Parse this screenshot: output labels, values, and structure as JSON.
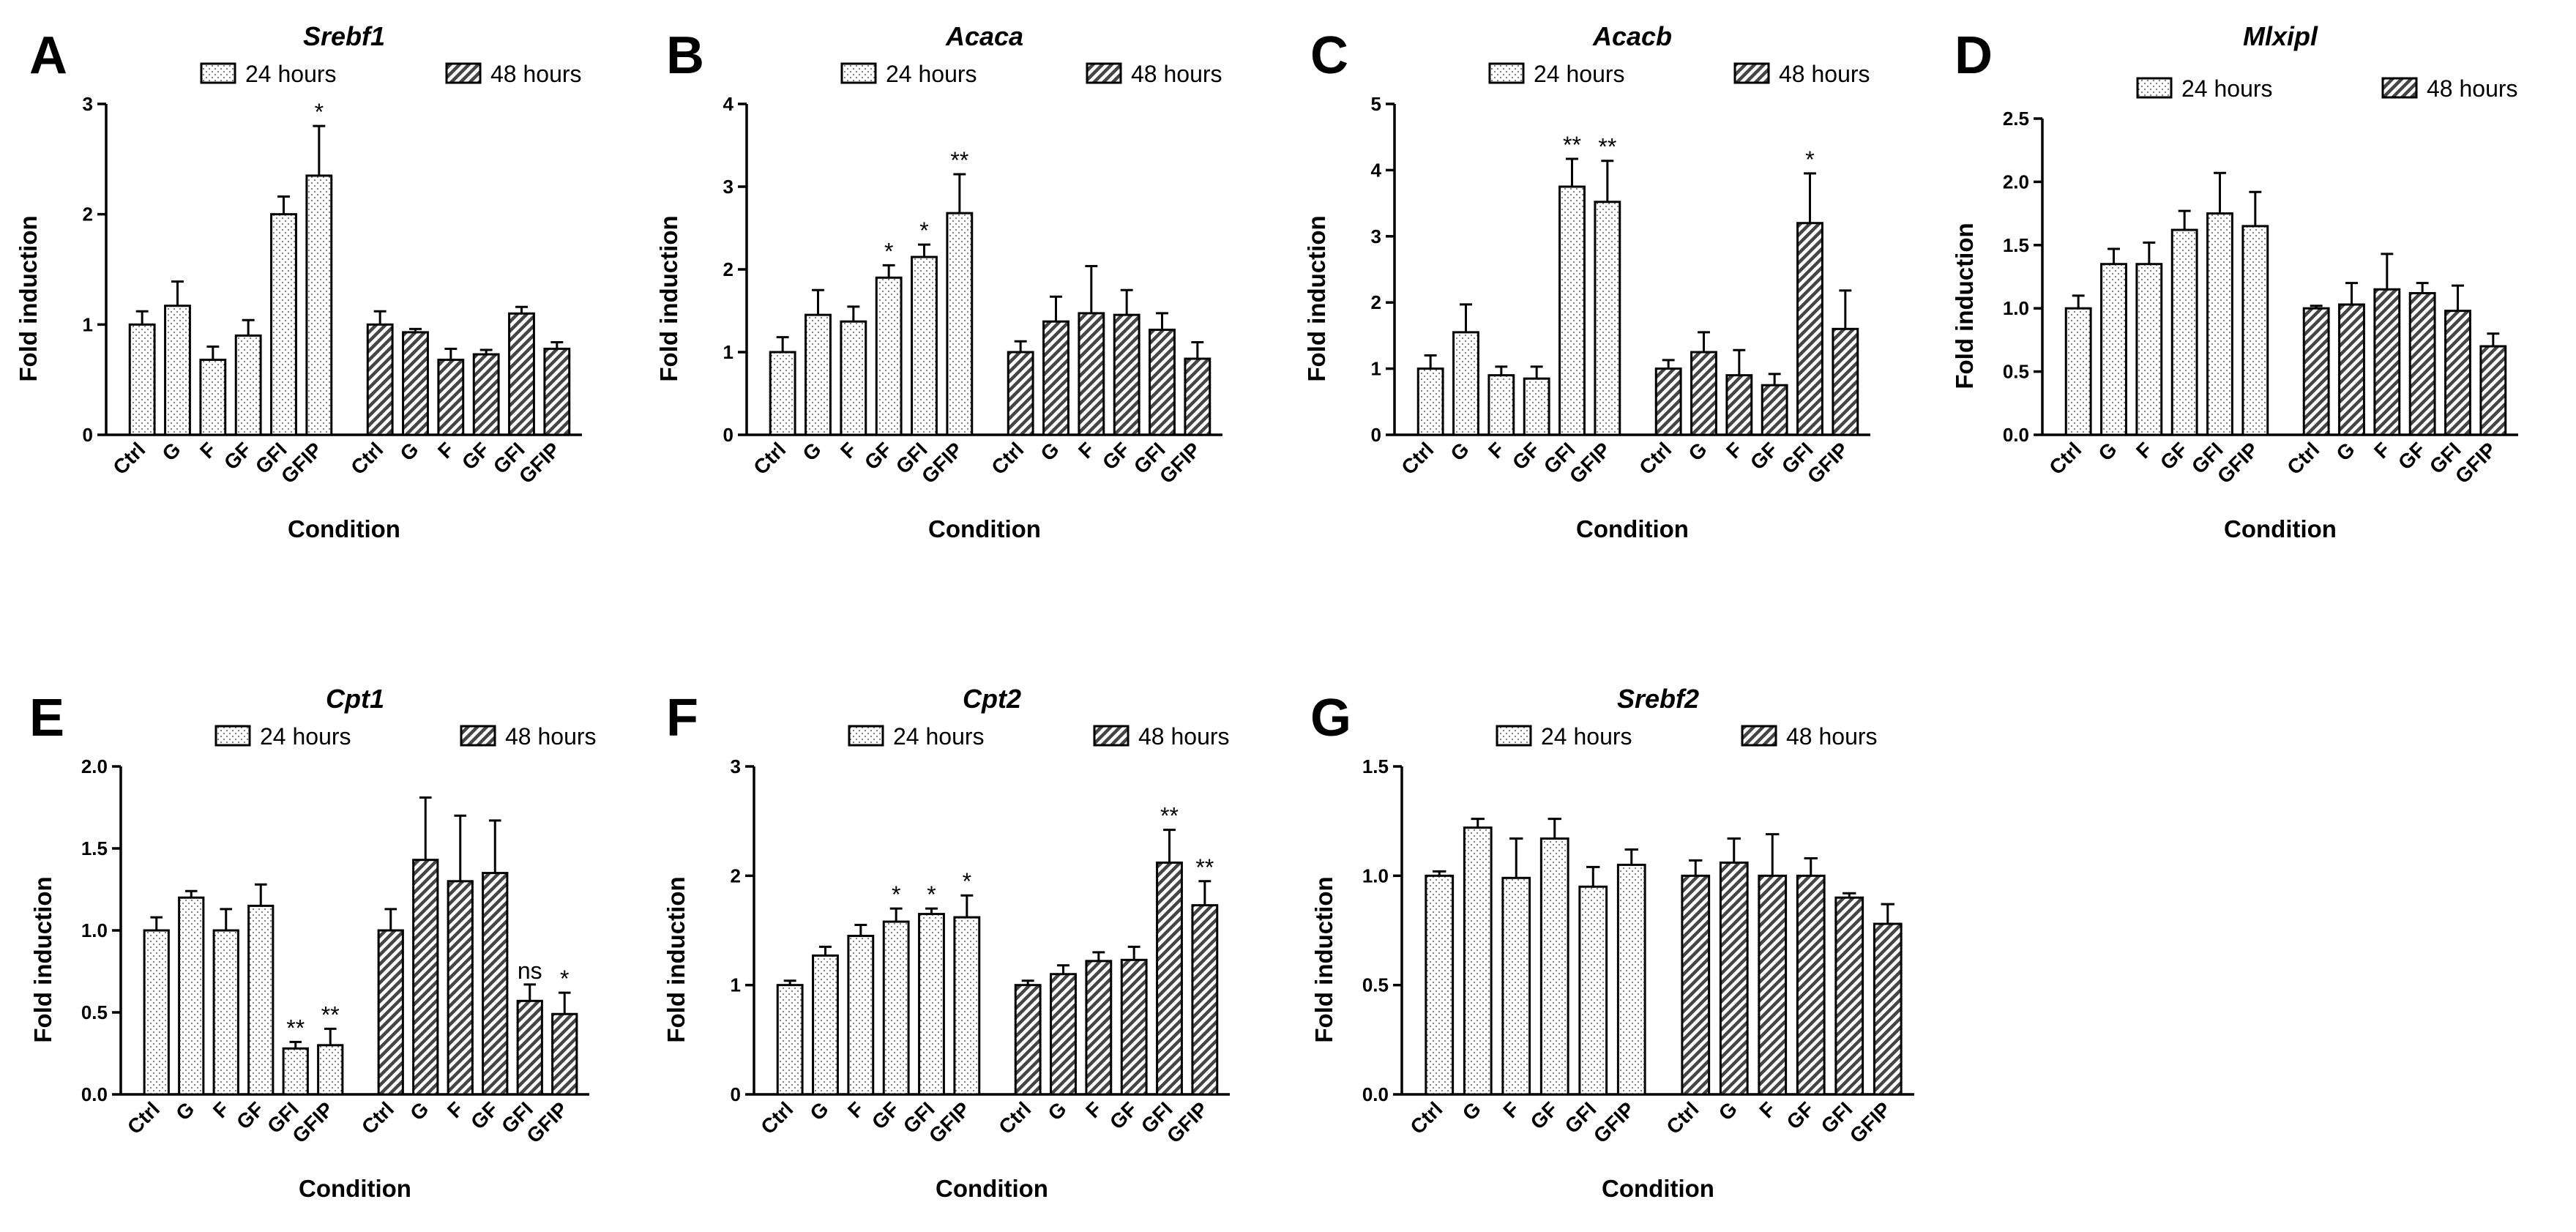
{
  "chart_data": [
    {
      "panel": "A",
      "type": "bar",
      "title": "Srebf1",
      "xlabel": "Condition",
      "ylabel": "Fold induction",
      "ylim": [
        0,
        3
      ],
      "yticks": [
        "0",
        "1",
        "2",
        "3"
      ],
      "categories": [
        "Ctrl",
        "G",
        "F",
        "GF",
        "GFI",
        "GFIP"
      ],
      "series": [
        {
          "name": "24 hours",
          "values": [
            1.0,
            1.17,
            0.68,
            0.9,
            2.0,
            2.35
          ],
          "errors": [
            0.12,
            0.22,
            0.12,
            0.14,
            0.16,
            0.45
          ],
          "significance": [
            "",
            "",
            "",
            "",
            "",
            "*"
          ]
        },
        {
          "name": "48 hours",
          "values": [
            1.0,
            0.93,
            0.68,
            0.73,
            1.1,
            0.78
          ],
          "errors": [
            0.12,
            0.03,
            0.1,
            0.04,
            0.06,
            0.06
          ],
          "significance": [
            "",
            "",
            "",
            "",
            "",
            ""
          ]
        }
      ]
    },
    {
      "panel": "B",
      "type": "bar",
      "title": "Acaca",
      "xlabel": "Condition",
      "ylabel": "Fold induction",
      "ylim": [
        0,
        4
      ],
      "yticks": [
        "0",
        "1",
        "2",
        "3",
        "4"
      ],
      "categories": [
        "Ctrl",
        "G",
        "F",
        "GF",
        "GFI",
        "GFIP"
      ],
      "series": [
        {
          "name": "24 hours",
          "values": [
            1.0,
            1.45,
            1.37,
            1.9,
            2.15,
            2.68
          ],
          "errors": [
            0.18,
            0.3,
            0.18,
            0.15,
            0.15,
            0.47
          ],
          "significance": [
            "",
            "",
            "",
            "*",
            "*",
            "**"
          ]
        },
        {
          "name": "48 hours",
          "values": [
            1.0,
            1.37,
            1.47,
            1.45,
            1.27,
            0.92
          ],
          "errors": [
            0.13,
            0.3,
            0.57,
            0.3,
            0.2,
            0.2
          ],
          "significance": [
            "",
            "",
            "",
            "",
            "",
            ""
          ]
        }
      ]
    },
    {
      "panel": "C",
      "type": "bar",
      "title": "Acacb",
      "xlabel": "Condition",
      "ylabel": "Fold induction",
      "ylim": [
        0,
        5
      ],
      "yticks": [
        "0",
        "1",
        "2",
        "3",
        "4",
        "5"
      ],
      "categories": [
        "Ctrl",
        "G",
        "F",
        "GF",
        "GFI",
        "GFIP"
      ],
      "series": [
        {
          "name": "24 hours",
          "values": [
            1.0,
            1.55,
            0.9,
            0.85,
            3.75,
            3.52
          ],
          "errors": [
            0.2,
            0.42,
            0.13,
            0.18,
            0.42,
            0.62
          ],
          "significance": [
            "",
            "",
            "",
            "",
            "**",
            "**"
          ]
        },
        {
          "name": "48 hours",
          "values": [
            1.0,
            1.25,
            0.9,
            0.75,
            3.2,
            1.6
          ],
          "errors": [
            0.13,
            0.3,
            0.38,
            0.17,
            0.75,
            0.58
          ],
          "significance": [
            "",
            "",
            "",
            "",
            "*",
            ""
          ]
        }
      ]
    },
    {
      "panel": "D",
      "type": "bar",
      "title": "Mlxipl",
      "xlabel": "Condition",
      "ylabel": "Fold induction",
      "ylim": [
        0,
        2.5
      ],
      "yticks": [
        "0.0",
        "0.5",
        "1.0",
        "1.5",
        "2.0",
        "2.5"
      ],
      "categories": [
        "Ctrl",
        "G",
        "F",
        "GF",
        "GFI",
        "GFIP"
      ],
      "series": [
        {
          "name": "24 hours",
          "values": [
            1.0,
            1.35,
            1.35,
            1.62,
            1.75,
            1.65
          ],
          "errors": [
            0.1,
            0.12,
            0.17,
            0.15,
            0.32,
            0.27
          ],
          "significance": [
            "",
            "",
            "",
            "",
            "",
            ""
          ]
        },
        {
          "name": "48 hours",
          "values": [
            1.0,
            1.03,
            1.15,
            1.12,
            0.98,
            0.7
          ],
          "errors": [
            0.02,
            0.17,
            0.28,
            0.08,
            0.2,
            0.1
          ],
          "significance": [
            "",
            "",
            "",
            "",
            "",
            ""
          ]
        }
      ]
    },
    {
      "panel": "E",
      "type": "bar",
      "title": "Cpt1",
      "xlabel": "Condition",
      "ylabel": "Fold induction",
      "ylim": [
        0,
        2
      ],
      "yticks": [
        "0.0",
        "0.5",
        "1.0",
        "1.5",
        "2.0"
      ],
      "categories": [
        "Ctrl",
        "G",
        "F",
        "GF",
        "GFI",
        "GFIP"
      ],
      "series": [
        {
          "name": "24 hours",
          "values": [
            1.0,
            1.2,
            1.0,
            1.15,
            0.28,
            0.3
          ],
          "errors": [
            0.08,
            0.04,
            0.13,
            0.13,
            0.04,
            0.1
          ],
          "significance": [
            "",
            "",
            "",
            "",
            "**",
            "**"
          ]
        },
        {
          "name": "48 hours",
          "values": [
            1.0,
            1.43,
            1.3,
            1.35,
            0.57,
            0.49
          ],
          "errors": [
            0.13,
            0.38,
            0.4,
            0.32,
            0.1,
            0.13
          ],
          "significance": [
            "",
            "",
            "",
            "",
            "ns",
            "*"
          ]
        }
      ]
    },
    {
      "panel": "F",
      "type": "bar",
      "title": "Cpt2",
      "xlabel": "Condition",
      "ylabel": "Fold induction",
      "ylim": [
        0,
        3
      ],
      "yticks": [
        "0",
        "1",
        "2",
        "3"
      ],
      "categories": [
        "Ctrl",
        "G",
        "F",
        "GF",
        "GFI",
        "GFIP"
      ],
      "series": [
        {
          "name": "24 hours",
          "values": [
            1.0,
            1.27,
            1.45,
            1.58,
            1.65,
            1.62
          ],
          "errors": [
            0.04,
            0.08,
            0.1,
            0.12,
            0.05,
            0.2
          ],
          "significance": [
            "",
            "",
            "",
            "*",
            "*",
            "*"
          ]
        },
        {
          "name": "48 hours",
          "values": [
            1.0,
            1.1,
            1.22,
            1.23,
            2.12,
            1.73
          ],
          "errors": [
            0.04,
            0.08,
            0.08,
            0.12,
            0.3,
            0.22
          ],
          "significance": [
            "",
            "",
            "",
            "",
            "**",
            "**"
          ]
        }
      ]
    },
    {
      "panel": "G",
      "type": "bar",
      "title": "Srebf2",
      "xlabel": "Condition",
      "ylabel": "Fold induction",
      "ylim": [
        0,
        1.5
      ],
      "yticks": [
        "0.0",
        "0.5",
        "1.0",
        "1.5"
      ],
      "categories": [
        "Ctrl",
        "G",
        "F",
        "GF",
        "GFI",
        "GFIP"
      ],
      "series": [
        {
          "name": "24 hours",
          "values": [
            1.0,
            1.22,
            0.99,
            1.17,
            0.95,
            1.05
          ],
          "errors": [
            0.02,
            0.04,
            0.18,
            0.09,
            0.09,
            0.07
          ],
          "significance": [
            "",
            "",
            "",
            "",
            "",
            ""
          ]
        },
        {
          "name": "48 hours",
          "values": [
            1.0,
            1.06,
            1.0,
            1.0,
            0.9,
            0.78
          ],
          "errors": [
            0.07,
            0.11,
            0.19,
            0.08,
            0.02,
            0.09
          ],
          "significance": [
            "",
            "",
            "",
            "",
            "",
            ""
          ]
        }
      ]
    }
  ]
}
